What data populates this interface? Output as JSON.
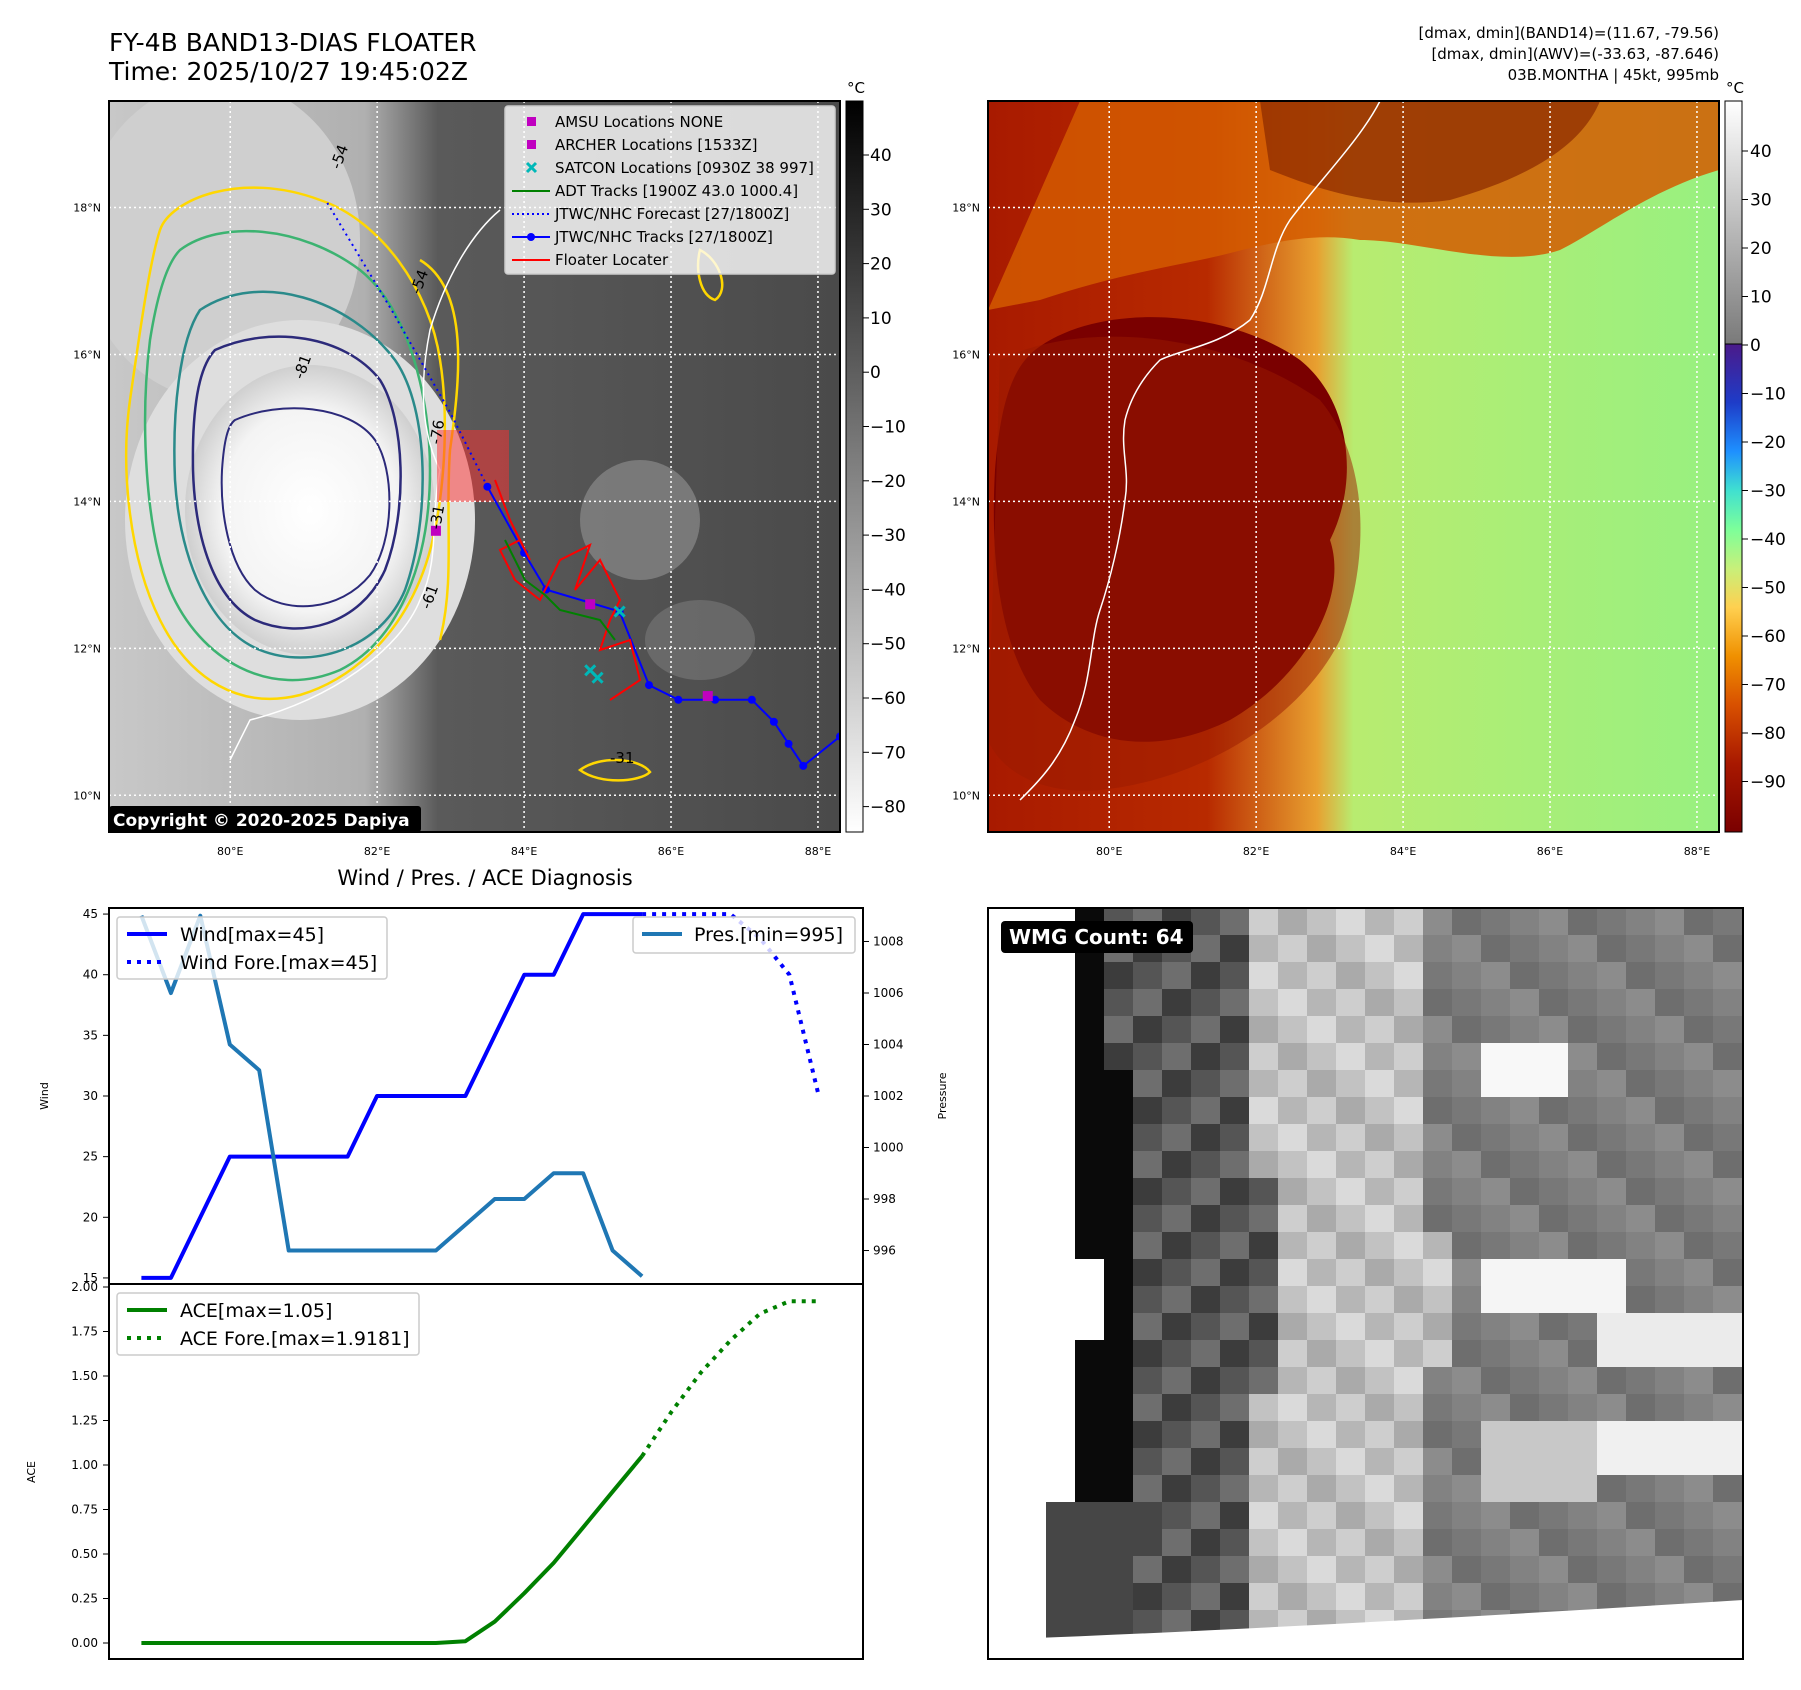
{
  "header": {
    "title_line1": "FY-4B BAND13-DIAS FLOATER",
    "title_line2": "Time: 2025/10/27 19:45:02Z",
    "info_line1": "[dmax, dmin](BAND14)=(11.67, -79.56)",
    "info_line2": "[dmax, dmin](AWV)=(-33.63, -87.646)",
    "info_line3": "03B.MONTHA | 45kt, 995mb"
  },
  "map_common": {
    "lat_labels": [
      "18°N",
      "16°N",
      "14°N",
      "12°N",
      "10°N"
    ],
    "lon_labels": [
      "80°E",
      "82°E",
      "84°E",
      "86°E",
      "88°E"
    ]
  },
  "ir_panel": {
    "copyright": "Copyright © 2020-2025 Dapiya",
    "colorbar_unit": "°C",
    "colorbar_ticks": [
      "40",
      "30",
      "20",
      "10",
      "0",
      "−10",
      "−20",
      "−30",
      "−40",
      "−50",
      "−60",
      "−70",
      "−80"
    ],
    "contour_labels": [
      "-54",
      "-81",
      "-76",
      "-31",
      "-61",
      "-54",
      "-31"
    ],
    "legend": [
      {
        "label": "AMSU Locations NONE",
        "color": "#c000c0",
        "marker": "square"
      },
      {
        "label": "ARCHER Locations [1533Z]",
        "color": "#c000c0",
        "marker": "square"
      },
      {
        "label": "SATCON Locations [0930Z 38 997]",
        "color": "#00b8b8",
        "marker": "x"
      },
      {
        "label": "ADT Tracks [1900Z 43.0 1000.4]",
        "color": "#008000",
        "marker": "line"
      },
      {
        "label": "JTWC/NHC Forecast [27/1800Z]",
        "color": "#0000ff",
        "marker": "dotted"
      },
      {
        "label": "JTWC/NHC Tracks [27/1800Z]",
        "color": "#0000ff",
        "marker": "line-dot"
      },
      {
        "label": "Floater Locater",
        "color": "#ff0000",
        "marker": "line"
      }
    ],
    "jtwc_track": [
      [
        88.3,
        10.8
      ],
      [
        87.8,
        10.4
      ],
      [
        87.6,
        10.7
      ],
      [
        87.4,
        11.0
      ],
      [
        87.1,
        11.3
      ],
      [
        86.6,
        11.3
      ],
      [
        86.1,
        11.3
      ],
      [
        85.7,
        11.5
      ],
      [
        85.3,
        12.5
      ],
      [
        84.3,
        12.8
      ],
      [
        84.0,
        13.3
      ],
      [
        83.5,
        14.2
      ]
    ],
    "jtwc_forecast": [
      [
        83.5,
        14.2
      ],
      [
        83.0,
        15.2
      ],
      [
        82.2,
        16.6
      ],
      [
        81.3,
        18.1
      ]
    ],
    "archer_points": [
      [
        82.8,
        13.6
      ],
      [
        84.9,
        12.6
      ],
      [
        86.5,
        11.35
      ]
    ],
    "satcon_points": [
      [
        84.9,
        11.7
      ],
      [
        85.3,
        12.5
      ],
      [
        85.0,
        11.6
      ]
    ]
  },
  "awv_panel": {
    "colorbar_unit": "°C",
    "colorbar_ticks": [
      "40",
      "30",
      "20",
      "10",
      "0",
      "−10",
      "−20",
      "−30",
      "−40",
      "−50",
      "−60",
      "−70",
      "−80",
      "−90"
    ]
  },
  "wind_panel": {
    "title": "Wind / Pres. / ACE Diagnosis",
    "wind_ylabel": "Wind",
    "pres_ylabel": "Pressure",
    "ace_ylabel": "ACE",
    "legend_wind": "Wind[max=45]",
    "legend_wind_fore": "Wind Fore.[max=45]",
    "legend_pres": "Pres.[min=995]",
    "legend_ace": "ACE[max=1.05]",
    "legend_ace_fore": "ACE Fore.[max=1.9181]"
  },
  "wmg_panel": {
    "badge": "WMG Count: 64"
  },
  "chart_data": [
    {
      "type": "line",
      "title": "Wind / Pres. / ACE Diagnosis",
      "ylabel": "Wind",
      "ylim": [
        14.5,
        45.5
      ],
      "yticks": [
        15,
        20,
        25,
        30,
        35,
        40,
        45
      ],
      "x": [
        0,
        1,
        2,
        3,
        4,
        5,
        6,
        7,
        8,
        9,
        10,
        11,
        12,
        13,
        14,
        15,
        16,
        17,
        18
      ],
      "series": [
        {
          "name": "Wind[max=45]",
          "color": "#0000ff",
          "style": "solid",
          "x": [
            0,
            1,
            2,
            3,
            4,
            5,
            6,
            7,
            8,
            9,
            10,
            11,
            12,
            13,
            14,
            15,
            16,
            17
          ],
          "values": [
            15,
            15,
            20,
            25,
            25,
            25,
            25,
            25,
            30,
            30,
            30,
            30,
            35,
            40,
            40,
            45,
            45,
            45
          ]
        },
        {
          "name": "Wind Fore.[max=45]",
          "color": "#0000ff",
          "style": "dotted",
          "x": [
            17,
            18,
            19,
            20,
            21,
            22,
            23
          ],
          "values": [
            45,
            45,
            45,
            45,
            43,
            40,
            30
          ]
        }
      ],
      "secondary": {
        "ylabel": "Pressure",
        "ylim": [
          994.7,
          1009.3
        ],
        "yticks": [
          996,
          998,
          1000,
          1002,
          1004,
          1006,
          1008
        ],
        "series": [
          {
            "name": "Pres.[min=995]",
            "color": "#1f77b4",
            "style": "solid",
            "x": [
              0,
              1,
              2,
              3,
              4,
              5,
              6,
              7,
              8,
              9,
              10,
              11,
              12,
              13,
              14,
              15,
              16,
              17
            ],
            "values": [
              1009,
              1006,
              1009,
              1004,
              1003,
              996,
              996,
              996,
              996,
              996,
              996,
              997,
              998,
              998,
              999,
              999,
              996,
              995
            ]
          }
        ]
      }
    },
    {
      "type": "line",
      "ylabel": "ACE",
      "ylim": [
        -0.08,
        2.0
      ],
      "yticks": [
        0.0,
        0.25,
        0.5,
        0.75,
        1.0,
        1.25,
        1.5,
        1.75,
        2.0
      ],
      "series": [
        {
          "name": "ACE[max=1.05]",
          "color": "#008000",
          "style": "solid",
          "x": [
            0,
            1,
            2,
            3,
            4,
            5,
            6,
            7,
            8,
            9,
            10,
            11,
            12,
            13,
            14,
            15,
            16,
            17
          ],
          "values": [
            0,
            0,
            0,
            0,
            0,
            0,
            0,
            0,
            0,
            0,
            0,
            0.01,
            0.12,
            0.28,
            0.45,
            0.65,
            0.85,
            1.05
          ]
        },
        {
          "name": "ACE Fore.[max=1.9181]",
          "color": "#008000",
          "style": "dotted",
          "x": [
            17,
            18,
            19,
            20,
            21,
            22,
            23
          ],
          "values": [
            1.05,
            1.3,
            1.52,
            1.7,
            1.85,
            1.92,
            1.92
          ]
        }
      ]
    }
  ]
}
